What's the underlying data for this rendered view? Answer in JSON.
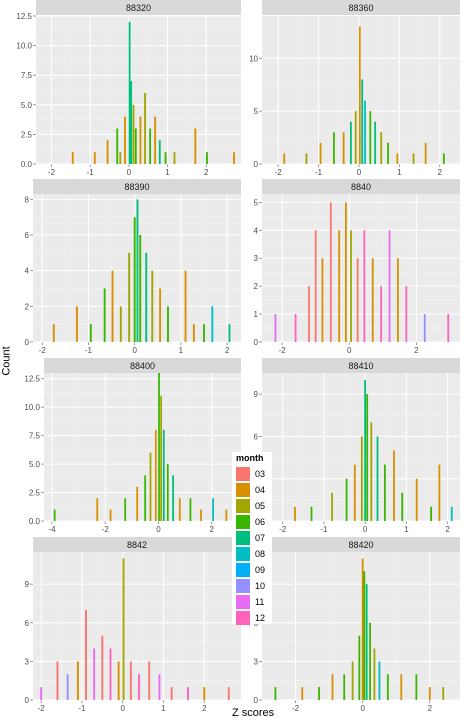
{
  "axes": {
    "ylabel": "Count",
    "xlabel": "Z scores"
  },
  "legend": {
    "title": "month",
    "items": [
      {
        "label": "03",
        "color": "#F8766D"
      },
      {
        "label": "04",
        "color": "#D89000"
      },
      {
        "label": "05",
        "color": "#A3A500"
      },
      {
        "label": "06",
        "color": "#39B600"
      },
      {
        "label": "07",
        "color": "#00BF7D"
      },
      {
        "label": "08",
        "color": "#00BFC4"
      },
      {
        "label": "09",
        "color": "#00B0F6"
      },
      {
        "label": "10",
        "color": "#9590FF"
      },
      {
        "label": "11",
        "color": "#E76BF3"
      },
      {
        "label": "12",
        "color": "#FF62BC"
      }
    ]
  },
  "chart_data": [
    {
      "type": "bar",
      "title": "88320",
      "xlim": [
        -2.4,
        2.9
      ],
      "ylim": [
        0,
        12.5
      ],
      "xticks": [
        -2,
        -1,
        0,
        1,
        2
      ],
      "yticks": [
        0.0,
        2.5,
        5.0,
        7.5,
        10.0,
        12.5
      ],
      "bars": [
        {
          "x": -1.45,
          "count": 1,
          "month": "04"
        },
        {
          "x": -0.88,
          "count": 1,
          "month": "04"
        },
        {
          "x": -0.55,
          "count": 2,
          "month": "04"
        },
        {
          "x": -0.3,
          "count": 3,
          "month": "06"
        },
        {
          "x": -0.22,
          "count": 1,
          "month": "05"
        },
        {
          "x": -0.1,
          "count": 4,
          "month": "04"
        },
        {
          "x": 0.02,
          "count": 12,
          "month": "07"
        },
        {
          "x": 0.06,
          "count": 7,
          "month": "07"
        },
        {
          "x": 0.12,
          "count": 5,
          "month": "05"
        },
        {
          "x": 0.18,
          "count": 3,
          "month": "06"
        },
        {
          "x": 0.3,
          "count": 4,
          "month": "04"
        },
        {
          "x": 0.42,
          "count": 6,
          "month": "05"
        },
        {
          "x": 0.55,
          "count": 3,
          "month": "06"
        },
        {
          "x": 0.68,
          "count": 4,
          "month": "04"
        },
        {
          "x": 0.8,
          "count": 2,
          "month": "07"
        },
        {
          "x": 0.95,
          "count": 1,
          "month": "06"
        },
        {
          "x": 1.18,
          "count": 1,
          "month": "05"
        },
        {
          "x": 1.72,
          "count": 3,
          "month": "04"
        },
        {
          "x": 2.02,
          "count": 1,
          "month": "06"
        },
        {
          "x": 2.72,
          "count": 1,
          "month": "04"
        }
      ]
    },
    {
      "type": "bar",
      "title": "88360",
      "xlim": [
        -2.4,
        2.5
      ],
      "ylim": [
        0,
        14
      ],
      "xticks": [
        -2,
        -1,
        0,
        1,
        2
      ],
      "yticks": [
        0,
        5,
        10
      ],
      "bars": [
        {
          "x": -1.85,
          "count": 1,
          "month": "04"
        },
        {
          "x": -1.3,
          "count": 1,
          "month": "05"
        },
        {
          "x": -0.95,
          "count": 2,
          "month": "04"
        },
        {
          "x": -0.62,
          "count": 3,
          "month": "06"
        },
        {
          "x": -0.38,
          "count": 3,
          "month": "04"
        },
        {
          "x": -0.2,
          "count": 4,
          "month": "07"
        },
        {
          "x": -0.08,
          "count": 5,
          "month": "05"
        },
        {
          "x": 0.02,
          "count": 13,
          "month": "04"
        },
        {
          "x": 0.08,
          "count": 8,
          "month": "07"
        },
        {
          "x": 0.15,
          "count": 6,
          "month": "08"
        },
        {
          "x": 0.28,
          "count": 5,
          "month": "06"
        },
        {
          "x": 0.4,
          "count": 4,
          "month": "07"
        },
        {
          "x": 0.55,
          "count": 3,
          "month": "05"
        },
        {
          "x": 0.72,
          "count": 2,
          "month": "06"
        },
        {
          "x": 0.95,
          "count": 1,
          "month": "04"
        },
        {
          "x": 1.35,
          "count": 1,
          "month": "05"
        },
        {
          "x": 1.65,
          "count": 2,
          "month": "04"
        },
        {
          "x": 2.1,
          "count": 1,
          "month": "06"
        }
      ]
    },
    {
      "type": "bar",
      "title": "88390",
      "xlim": [
        -2.2,
        2.3
      ],
      "ylim": [
        0,
        8.3
      ],
      "xticks": [
        -2,
        -1,
        0,
        1,
        2
      ],
      "yticks": [
        0,
        2,
        4,
        6,
        8
      ],
      "bars": [
        {
          "x": -1.75,
          "count": 1,
          "month": "04"
        },
        {
          "x": -1.25,
          "count": 2,
          "month": "04"
        },
        {
          "x": -0.95,
          "count": 1,
          "month": "06"
        },
        {
          "x": -0.65,
          "count": 3,
          "month": "06"
        },
        {
          "x": -0.48,
          "count": 4,
          "month": "04"
        },
        {
          "x": -0.3,
          "count": 2,
          "month": "05"
        },
        {
          "x": -0.12,
          "count": 5,
          "month": "05"
        },
        {
          "x": 0.0,
          "count": 7,
          "month": "06"
        },
        {
          "x": 0.06,
          "count": 8,
          "month": "07"
        },
        {
          "x": 0.12,
          "count": 6,
          "month": "06"
        },
        {
          "x": 0.25,
          "count": 5,
          "month": "07"
        },
        {
          "x": 0.38,
          "count": 4,
          "month": "05"
        },
        {
          "x": 0.55,
          "count": 3,
          "month": "04"
        },
        {
          "x": 0.72,
          "count": 2,
          "month": "06"
        },
        {
          "x": 1.1,
          "count": 4,
          "month": "04"
        },
        {
          "x": 1.28,
          "count": 1,
          "month": "04"
        },
        {
          "x": 1.5,
          "count": 1,
          "month": "06"
        },
        {
          "x": 1.68,
          "count": 2,
          "month": "08"
        },
        {
          "x": 2.05,
          "count": 1,
          "month": "07"
        }
      ]
    },
    {
      "type": "bar",
      "title": "8840",
      "xlim": [
        -2.6,
        3.3
      ],
      "ylim": [
        0,
        5.3
      ],
      "xticks": [
        -2,
        0,
        2
      ],
      "yticks": [
        0,
        1,
        2,
        3,
        4,
        5
      ],
      "bars": [
        {
          "x": -2.2,
          "count": 1,
          "month": "11"
        },
        {
          "x": -1.6,
          "count": 1,
          "month": "12"
        },
        {
          "x": -1.2,
          "count": 2,
          "month": "03"
        },
        {
          "x": -1.0,
          "count": 4,
          "month": "03"
        },
        {
          "x": -0.8,
          "count": 3,
          "month": "04"
        },
        {
          "x": -0.55,
          "count": 5,
          "month": "03"
        },
        {
          "x": -0.3,
          "count": 4,
          "month": "04"
        },
        {
          "x": -0.1,
          "count": 5,
          "month": "04"
        },
        {
          "x": 0.05,
          "count": 4,
          "month": "05"
        },
        {
          "x": 0.25,
          "count": 3,
          "month": "03"
        },
        {
          "x": 0.45,
          "count": 4,
          "month": "12"
        },
        {
          "x": 0.7,
          "count": 3,
          "month": "04"
        },
        {
          "x": 0.95,
          "count": 2,
          "month": "12"
        },
        {
          "x": 1.2,
          "count": 4,
          "month": "11"
        },
        {
          "x": 1.45,
          "count": 3,
          "month": "04"
        },
        {
          "x": 1.7,
          "count": 2,
          "month": "12"
        },
        {
          "x": 2.25,
          "count": 1,
          "month": "10"
        },
        {
          "x": 2.95,
          "count": 1,
          "month": "12"
        }
      ]
    },
    {
      "type": "bar",
      "title": "88400",
      "xlim": [
        -4.3,
        3.1
      ],
      "ylim": [
        0,
        13
      ],
      "xticks": [
        -4,
        -2,
        0,
        2
      ],
      "yticks": [
        0.0,
        2.5,
        5.0,
        7.5,
        10.0,
        12.5
      ],
      "bars": [
        {
          "x": -3.9,
          "count": 1,
          "month": "06"
        },
        {
          "x": -2.3,
          "count": 2,
          "month": "04"
        },
        {
          "x": -1.8,
          "count": 1,
          "month": "04"
        },
        {
          "x": -1.25,
          "count": 2,
          "month": "06"
        },
        {
          "x": -0.8,
          "count": 3,
          "month": "04"
        },
        {
          "x": -0.5,
          "count": 4,
          "month": "06"
        },
        {
          "x": -0.3,
          "count": 6,
          "month": "05"
        },
        {
          "x": -0.1,
          "count": 8,
          "month": "04"
        },
        {
          "x": 0.02,
          "count": 13,
          "month": "06"
        },
        {
          "x": 0.1,
          "count": 11,
          "month": "05"
        },
        {
          "x": 0.2,
          "count": 8,
          "month": "07"
        },
        {
          "x": 0.35,
          "count": 5,
          "month": "06"
        },
        {
          "x": 0.55,
          "count": 4,
          "month": "07"
        },
        {
          "x": 0.8,
          "count": 2,
          "month": "04"
        },
        {
          "x": 1.2,
          "count": 2,
          "month": "06"
        },
        {
          "x": 1.6,
          "count": 1,
          "month": "04"
        },
        {
          "x": 2.05,
          "count": 2,
          "month": "08"
        },
        {
          "x": 2.55,
          "count": 1,
          "month": "04"
        }
      ]
    },
    {
      "type": "bar",
      "title": "88410",
      "xlim": [
        -2.5,
        2.3
      ],
      "ylim": [
        0,
        10.5
      ],
      "xticks": [
        -2,
        -1,
        0,
        1,
        2
      ],
      "yticks": [
        0,
        3,
        6,
        9
      ],
      "bars": [
        {
          "x": -2.3,
          "count": 2,
          "month": "04"
        },
        {
          "x": -1.7,
          "count": 1,
          "month": "04"
        },
        {
          "x": -1.3,
          "count": 1,
          "month": "06"
        },
        {
          "x": -0.8,
          "count": 2,
          "month": "05"
        },
        {
          "x": -0.45,
          "count": 3,
          "month": "06"
        },
        {
          "x": -0.25,
          "count": 4,
          "month": "04"
        },
        {
          "x": -0.08,
          "count": 6,
          "month": "05"
        },
        {
          "x": 0.0,
          "count": 10,
          "month": "07"
        },
        {
          "x": 0.05,
          "count": 9,
          "month": "06"
        },
        {
          "x": 0.15,
          "count": 7,
          "month": "05"
        },
        {
          "x": 0.3,
          "count": 6,
          "month": "07"
        },
        {
          "x": 0.48,
          "count": 4,
          "month": "06"
        },
        {
          "x": 0.7,
          "count": 5,
          "month": "04"
        },
        {
          "x": 0.9,
          "count": 2,
          "month": "06"
        },
        {
          "x": 1.25,
          "count": 3,
          "month": "04"
        },
        {
          "x": 1.6,
          "count": 1,
          "month": "06"
        },
        {
          "x": 1.8,
          "count": 4,
          "month": "04"
        },
        {
          "x": 2.1,
          "count": 1,
          "month": "08"
        }
      ]
    },
    {
      "type": "bar",
      "title": "8842",
      "xlim": [
        -2.2,
        2.9
      ],
      "ylim": [
        0,
        11.5
      ],
      "xticks": [
        -2,
        -1,
        0,
        1,
        2
      ],
      "yticks": [
        0,
        3,
        6,
        9
      ],
      "bars": [
        {
          "x": -2.0,
          "count": 1,
          "month": "11"
        },
        {
          "x": -1.6,
          "count": 3,
          "month": "03"
        },
        {
          "x": -1.35,
          "count": 2,
          "month": "10"
        },
        {
          "x": -1.1,
          "count": 3,
          "month": "04"
        },
        {
          "x": -0.9,
          "count": 7,
          "month": "03"
        },
        {
          "x": -0.7,
          "count": 4,
          "month": "11"
        },
        {
          "x": -0.5,
          "count": 5,
          "month": "03"
        },
        {
          "x": -0.3,
          "count": 4,
          "month": "12"
        },
        {
          "x": -0.1,
          "count": 3,
          "month": "04"
        },
        {
          "x": 0.02,
          "count": 11,
          "month": "05"
        },
        {
          "x": 0.2,
          "count": 3,
          "month": "03"
        },
        {
          "x": 0.4,
          "count": 2,
          "month": "12"
        },
        {
          "x": 0.65,
          "count": 3,
          "month": "03"
        },
        {
          "x": 0.9,
          "count": 2,
          "month": "11"
        },
        {
          "x": 1.2,
          "count": 1,
          "month": "03"
        },
        {
          "x": 1.6,
          "count": 1,
          "month": "12"
        },
        {
          "x": 2.0,
          "count": 1,
          "month": "04"
        },
        {
          "x": 2.6,
          "count": 1,
          "month": "03"
        }
      ]
    },
    {
      "type": "bar",
      "title": "88420",
      "xlim": [
        -3.0,
        2.9
      ],
      "ylim": [
        0,
        11.5
      ],
      "xticks": [
        -2,
        0,
        2
      ],
      "yticks": [
        0,
        3,
        6,
        9
      ],
      "bars": [
        {
          "x": -2.6,
          "count": 1,
          "month": "06"
        },
        {
          "x": -1.8,
          "count": 1,
          "month": "04"
        },
        {
          "x": -1.3,
          "count": 1,
          "month": "06"
        },
        {
          "x": -0.9,
          "count": 2,
          "month": "04"
        },
        {
          "x": -0.55,
          "count": 2,
          "month": "06"
        },
        {
          "x": -0.3,
          "count": 3,
          "month": "05"
        },
        {
          "x": -0.1,
          "count": 5,
          "month": "06"
        },
        {
          "x": 0.0,
          "count": 11,
          "month": "04"
        },
        {
          "x": 0.05,
          "count": 10,
          "month": "06"
        },
        {
          "x": 0.12,
          "count": 9,
          "month": "07"
        },
        {
          "x": 0.22,
          "count": 6,
          "month": "06"
        },
        {
          "x": 0.35,
          "count": 4,
          "month": "05"
        },
        {
          "x": 0.5,
          "count": 3,
          "month": "08"
        },
        {
          "x": 0.75,
          "count": 2,
          "month": "06"
        },
        {
          "x": 1.15,
          "count": 2,
          "month": "04"
        },
        {
          "x": 1.6,
          "count": 2,
          "month": "06"
        },
        {
          "x": 2.0,
          "count": 1,
          "month": "04"
        },
        {
          "x": 2.4,
          "count": 1,
          "month": "05"
        }
      ]
    }
  ]
}
